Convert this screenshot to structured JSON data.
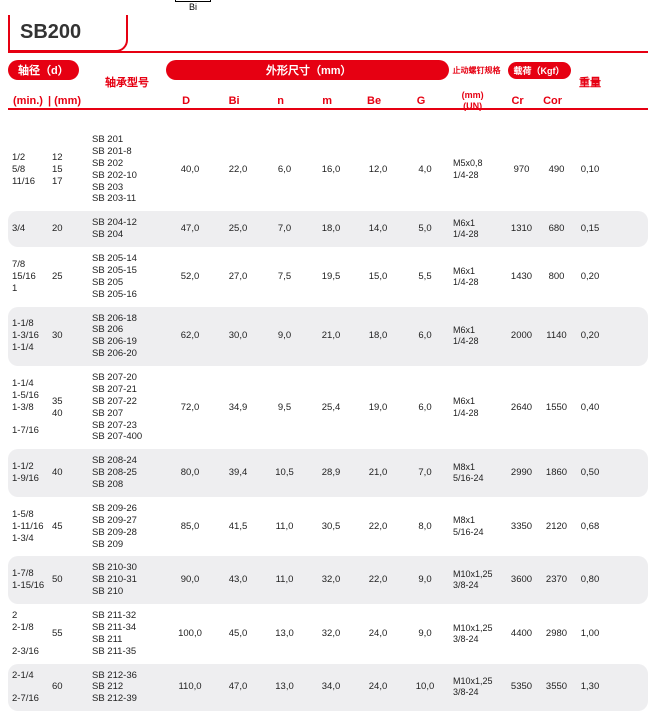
{
  "title": "SB200",
  "diagram_label": "Bi",
  "header": {
    "shaft_dia": "轴径（d）",
    "min": "(min.)",
    "mm": "(mm)",
    "model": "轴承型号",
    "dims": "外形尺寸（mm）",
    "D": "D",
    "Bi": "Bi",
    "n": "n",
    "m": "m",
    "Be": "Be",
    "G": "G",
    "thread": "止动螺钉规格",
    "un": "(mm)\n(UN)",
    "load": "载荷（Kgf）",
    "Cr": "Cr",
    "Cor": "Cor",
    "weight": "重量"
  },
  "rows": [
    {
      "alt": false,
      "min": "1/2\n5/8\n11/16",
      "mm": "12\n15\n17",
      "model": "SB 201\nSB 201-8\nSB 202\nSB 202-10\nSB 203\nSB 203-11",
      "D": "40,0",
      "Bi": "22,0",
      "n": "6,0",
      "m": "16,0",
      "Be": "12,0",
      "G": "4,0",
      "UN": "M5x0,8\n1/4-28",
      "Cr": "970",
      "Cor": "490",
      "Wt": "0,10"
    },
    {
      "alt": true,
      "min": "3/4",
      "mm": "20",
      "model": "SB 204-12\nSB 204",
      "D": "47,0",
      "Bi": "25,0",
      "n": "7,0",
      "m": "18,0",
      "Be": "14,0",
      "G": "5,0",
      "UN": "M6x1\n1/4-28",
      "Cr": "1310",
      "Cor": "680",
      "Wt": "0,15"
    },
    {
      "alt": false,
      "min": "7/8\n15/16\n1",
      "mm": "25",
      "model": "SB 205-14\nSB 205-15\nSB 205\nSB 205-16",
      "D": "52,0",
      "Bi": "27,0",
      "n": "7,5",
      "m": "19,5",
      "Be": "15,0",
      "G": "5,5",
      "UN": "M6x1\n1/4-28",
      "Cr": "1430",
      "Cor": "800",
      "Wt": "0,20"
    },
    {
      "alt": true,
      "min": "1-1/8\n1-3/16\n1-1/4",
      "mm": "30",
      "model": "SB 206-18\nSB 206\nSB 206-19\nSB 206-20",
      "D": "62,0",
      "Bi": "30,0",
      "n": "9,0",
      "m": "21,0",
      "Be": "18,0",
      "G": "6,0",
      "UN": "M6x1\n1/4-28",
      "Cr": "2000",
      "Cor": "1140",
      "Wt": "0,20"
    },
    {
      "alt": false,
      "min": "1-1/4\n1-5/16\n1-3/8\n\n1-7/16",
      "mm": "35\n40",
      "model": "SB 207-20\nSB 207-21\nSB 207-22\nSB 207\nSB 207-23\nSB 207-400",
      "D": "72,0",
      "Bi": "34,9",
      "n": "9,5",
      "m": "25,4",
      "Be": "19,0",
      "G": "6,0",
      "UN": "M6x1\n1/4-28",
      "Cr": "2640",
      "Cor": "1550",
      "Wt": "0,40"
    },
    {
      "alt": true,
      "min": "1-1/2\n1-9/16",
      "mm": "40",
      "model": "SB 208-24\nSB 208-25\nSB 208",
      "D": "80,0",
      "Bi": "39,4",
      "n": "10,5",
      "m": "28,9",
      "Be": "21,0",
      "G": "7,0",
      "UN": "M8x1\n5/16-24",
      "Cr": "2990",
      "Cor": "1860",
      "Wt": "0,50"
    },
    {
      "alt": false,
      "min": "1-5/8\n1-11/16\n1-3/4",
      "mm": "45",
      "model": "SB 209-26\nSB 209-27\nSB 209-28\nSB 209",
      "D": "85,0",
      "Bi": "41,5",
      "n": "11,0",
      "m": "30,5",
      "Be": "22,0",
      "G": "8,0",
      "UN": "M8x1\n5/16-24",
      "Cr": "3350",
      "Cor": "2120",
      "Wt": "0,68"
    },
    {
      "alt": true,
      "min": "1-7/8\n1-15/16",
      "mm": "50",
      "model": "SB 210-30\nSB 210-31\nSB 210",
      "D": "90,0",
      "Bi": "43,0",
      "n": "11,0",
      "m": "32,0",
      "Be": "22,0",
      "G": "9,0",
      "UN": "M10x1,25\n3/8-24",
      "Cr": "3600",
      "Cor": "2370",
      "Wt": "0,80"
    },
    {
      "alt": false,
      "min": "2\n2-1/8\n\n2-3/16",
      "mm": "55",
      "model": "SB 211-32\nSB 211-34\nSB 211\nSB 211-35",
      "D": "100,0",
      "Bi": "45,0",
      "n": "13,0",
      "m": "32,0",
      "Be": "24,0",
      "G": "9,0",
      "UN": "M10x1,25\n3/8-24",
      "Cr": "4400",
      "Cor": "2980",
      "Wt": "1,00"
    },
    {
      "alt": true,
      "min": "2-1/4\n\n2-7/16",
      "mm": "60",
      "model": "SB 212-36\nSB 212\nSB 212-39",
      "D": "110,0",
      "Bi": "47,0",
      "n": "13,0",
      "m": "34,0",
      "Be": "24,0",
      "G": "10,0",
      "UN": "M10x1,25\n3/8-24",
      "Cr": "5350",
      "Cor": "3550",
      "Wt": "1,30"
    }
  ]
}
